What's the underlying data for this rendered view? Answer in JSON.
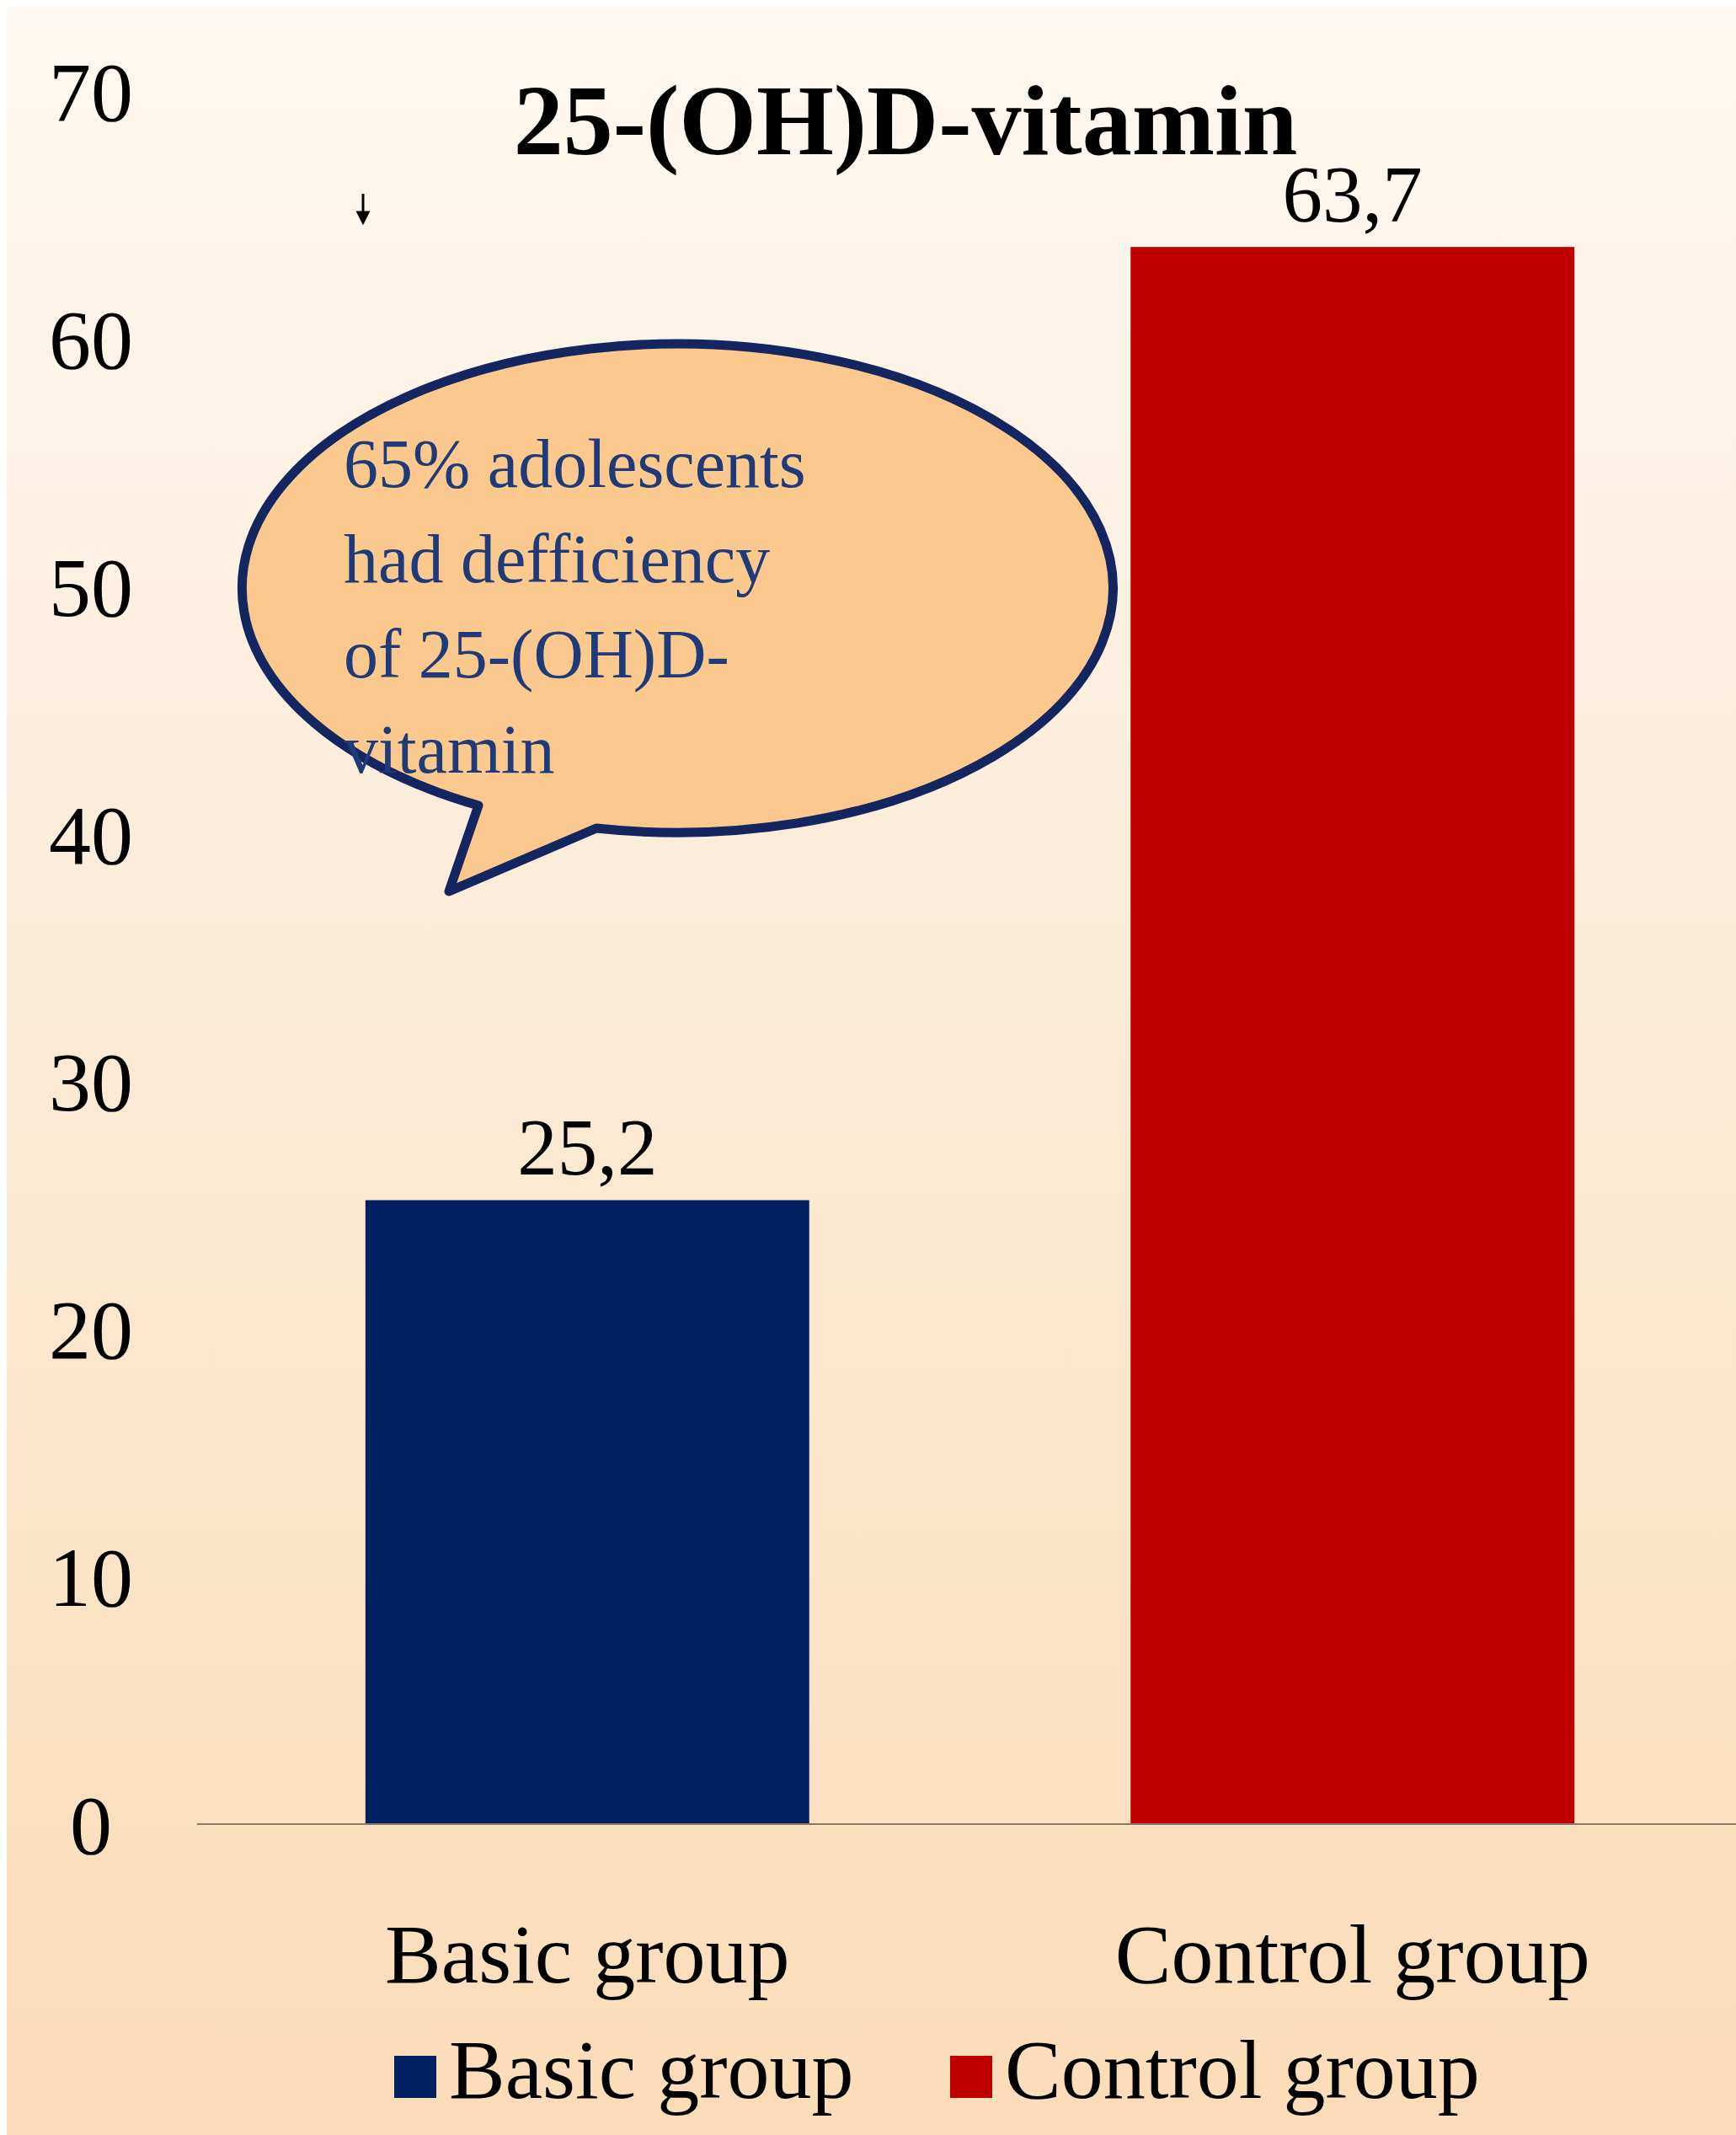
{
  "chart_data": {
    "type": "bar",
    "title": "25-(OH)D-vitamin",
    "categories": [
      "Basic group",
      "Control group"
    ],
    "series": [
      {
        "name": "Basic group",
        "color": "#002060",
        "values": [
          25.2,
          null
        ],
        "value_labels": [
          "25,2",
          null
        ]
      },
      {
        "name": "Control group",
        "color": "#c00000",
        "values": [
          null,
          63.7
        ],
        "value_labels": [
          null,
          "63,7"
        ]
      }
    ],
    "ylim": [
      0,
      70
    ],
    "yticks": [
      0,
      10,
      20,
      30,
      40,
      50,
      60,
      70
    ],
    "grid": false,
    "legend": "bottom",
    "annotations": [
      "65% adolescents had defficiency of 25-(OH)D-vitamin"
    ]
  }
}
